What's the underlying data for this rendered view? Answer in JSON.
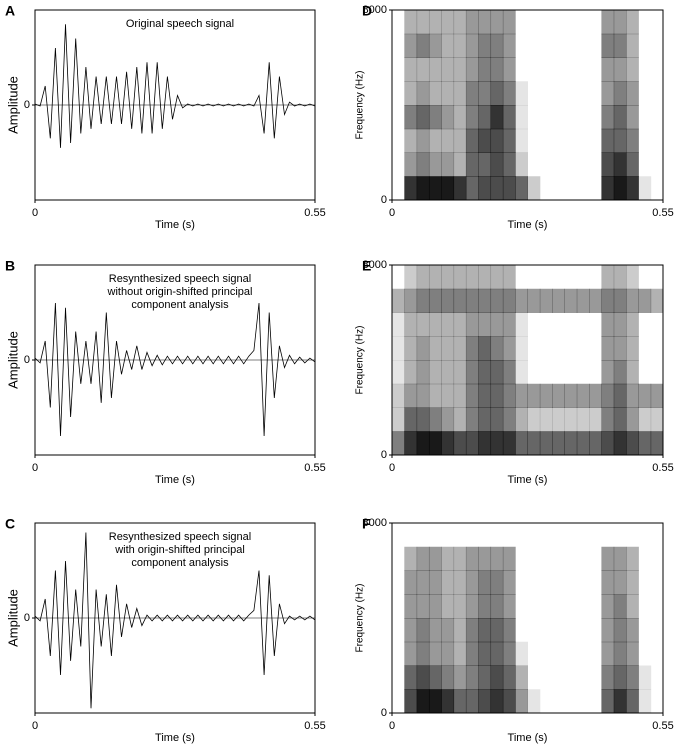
{
  "chart_data": [
    {
      "type": "line",
      "panel": "A",
      "title": [
        "Original speech signal"
      ],
      "xlabel": "Time (s)",
      "ylabel": "Amplitude",
      "xlim": [
        0,
        0.55
      ],
      "xticks": [
        0,
        0.55
      ],
      "ylim": [
        -1,
        1
      ],
      "yticks": [
        0
      ],
      "color": "#000000",
      "x": [
        0,
        0.01,
        0.02,
        0.03,
        0.04,
        0.05,
        0.06,
        0.07,
        0.08,
        0.09,
        0.1,
        0.11,
        0.12,
        0.13,
        0.14,
        0.15,
        0.16,
        0.17,
        0.18,
        0.19,
        0.2,
        0.21,
        0.22,
        0.23,
        0.24,
        0.25,
        0.26,
        0.27,
        0.28,
        0.29,
        0.3,
        0.31,
        0.32,
        0.33,
        0.34,
        0.35,
        0.36,
        0.37,
        0.38,
        0.39,
        0.4,
        0.41,
        0.42,
        0.43,
        0.44,
        0.45,
        0.46,
        0.47,
        0.48,
        0.49,
        0.5,
        0.51,
        0.52,
        0.53,
        0.54,
        0.55
      ],
      "values": [
        0.01,
        -0.01,
        0.2,
        -0.35,
        0.6,
        -0.45,
        0.85,
        -0.4,
        0.7,
        -0.3,
        0.4,
        -0.25,
        0.3,
        -0.2,
        0.3,
        -0.2,
        0.3,
        -0.2,
        0.35,
        -0.25,
        0.4,
        -0.3,
        0.45,
        -0.3,
        0.45,
        -0.25,
        0.3,
        -0.15,
        0.1,
        -0.03,
        0.01,
        -0.01,
        0.01,
        -0.01,
        0.01,
        -0.01,
        0.01,
        -0.01,
        0.01,
        -0.01,
        0.01,
        -0.01,
        0.01,
        -0.01,
        0.1,
        -0.3,
        0.45,
        -0.35,
        0.3,
        -0.1,
        0.03,
        -0.01,
        0.01,
        -0.01,
        0.01,
        -0.01
      ]
    },
    {
      "type": "heatmap",
      "panel": "D",
      "xlabel": "Time (s)",
      "ylabel": "Frequency (Hz)",
      "xlim": [
        0,
        0.55
      ],
      "xticks": [
        0,
        0.55
      ],
      "ylim": [
        0,
        8000
      ],
      "yticks": [
        0,
        8000
      ],
      "z": [
        [
          0,
          8,
          9,
          9,
          9,
          8,
          6,
          7,
          7,
          7,
          6,
          2,
          0,
          0,
          0,
          0,
          0,
          8,
          9,
          8,
          1,
          0
        ],
        [
          0,
          4,
          5,
          4,
          4,
          3,
          6,
          6,
          7,
          6,
          2,
          0,
          0,
          0,
          0,
          0,
          0,
          7,
          8,
          6,
          0,
          0
        ],
        [
          0,
          3,
          4,
          3,
          3,
          3,
          6,
          7,
          7,
          6,
          1,
          0,
          0,
          0,
          0,
          0,
          0,
          6,
          6,
          5,
          0,
          0
        ],
        [
          0,
          5,
          6,
          5,
          4,
          3,
          5,
          6,
          8,
          6,
          1,
          0,
          0,
          0,
          0,
          0,
          0,
          5,
          6,
          4,
          0,
          0
        ],
        [
          0,
          3,
          4,
          3,
          3,
          3,
          5,
          5,
          6,
          5,
          1,
          0,
          0,
          0,
          0,
          0,
          0,
          4,
          5,
          4,
          0,
          0
        ],
        [
          0,
          3,
          3,
          3,
          3,
          3,
          4,
          5,
          5,
          4,
          0,
          0,
          0,
          0,
          0,
          0,
          0,
          4,
          4,
          3,
          0,
          0
        ],
        [
          0,
          4,
          5,
          4,
          3,
          3,
          4,
          5,
          5,
          4,
          0,
          0,
          0,
          0,
          0,
          0,
          0,
          5,
          5,
          3,
          0,
          0
        ],
        [
          0,
          3,
          3,
          3,
          3,
          3,
          4,
          4,
          4,
          4,
          0,
          0,
          0,
          0,
          0,
          0,
          0,
          4,
          4,
          3,
          0,
          0
        ]
      ]
    },
    {
      "type": "line",
      "panel": "B",
      "title": [
        "Resynthesized speech signal",
        "without origin-shifted principal",
        "component analysis"
      ],
      "xlabel": "Time (s)",
      "ylabel": "Amplitude",
      "xlim": [
        0,
        0.55
      ],
      "xticks": [
        0,
        0.55
      ],
      "ylim": [
        -1,
        1
      ],
      "yticks": [
        0
      ],
      "color": "#000000",
      "x": [
        0,
        0.01,
        0.02,
        0.03,
        0.04,
        0.05,
        0.06,
        0.07,
        0.08,
        0.09,
        0.1,
        0.11,
        0.12,
        0.13,
        0.14,
        0.15,
        0.16,
        0.17,
        0.18,
        0.19,
        0.2,
        0.21,
        0.22,
        0.23,
        0.24,
        0.25,
        0.26,
        0.27,
        0.28,
        0.29,
        0.3,
        0.31,
        0.32,
        0.33,
        0.34,
        0.35,
        0.36,
        0.37,
        0.38,
        0.39,
        0.4,
        0.41,
        0.42,
        0.43,
        0.44,
        0.45,
        0.46,
        0.47,
        0.48,
        0.49,
        0.5,
        0.51,
        0.52,
        0.53,
        0.54,
        0.55
      ],
      "values": [
        0.02,
        -0.03,
        0.2,
        -0.5,
        0.6,
        -0.8,
        0.55,
        -0.6,
        0.3,
        -0.25,
        0.2,
        -0.25,
        0.3,
        -0.45,
        0.5,
        -0.4,
        0.2,
        -0.15,
        0.1,
        -0.1,
        0.15,
        -0.1,
        0.08,
        -0.06,
        0.05,
        -0.05,
        0.04,
        -0.04,
        0.04,
        -0.04,
        0.04,
        -0.04,
        0.04,
        -0.04,
        0.04,
        -0.04,
        0.04,
        -0.04,
        0.04,
        -0.04,
        0.04,
        -0.04,
        0.04,
        0.1,
        0.6,
        -0.8,
        0.5,
        -0.4,
        0.15,
        -0.08,
        0.05,
        -0.04,
        0.03,
        -0.03,
        0.02,
        -0.02
      ]
    },
    {
      "type": "heatmap",
      "panel": "E",
      "xlabel": "Time (s)",
      "ylabel": "Frequency (Hz)",
      "xlim": [
        0,
        0.55
      ],
      "xticks": [
        0,
        0.55
      ],
      "ylim": [
        0,
        8000
      ],
      "yticks": [
        0,
        8000
      ],
      "z": [
        [
          5,
          8,
          9,
          9,
          8,
          7,
          7,
          8,
          8,
          8,
          6,
          6,
          6,
          6,
          6,
          6,
          6,
          7,
          8,
          7,
          6,
          6
        ],
        [
          2,
          6,
          6,
          5,
          4,
          3,
          5,
          6,
          6,
          5,
          3,
          2,
          2,
          2,
          2,
          2,
          2,
          5,
          6,
          4,
          2,
          2
        ],
        [
          2,
          4,
          4,
          3,
          3,
          3,
          5,
          6,
          6,
          5,
          4,
          4,
          4,
          4,
          4,
          4,
          4,
          5,
          6,
          4,
          4,
          4
        ],
        [
          1,
          3,
          4,
          3,
          3,
          3,
          5,
          6,
          6,
          5,
          1,
          0,
          0,
          0,
          0,
          0,
          0,
          4,
          5,
          3,
          0,
          0
        ],
        [
          1,
          3,
          4,
          3,
          3,
          3,
          5,
          6,
          5,
          4,
          1,
          0,
          0,
          0,
          0,
          0,
          0,
          4,
          4,
          3,
          0,
          0
        ],
        [
          1,
          3,
          3,
          3,
          3,
          3,
          4,
          4,
          4,
          4,
          1,
          0,
          0,
          0,
          0,
          0,
          0,
          4,
          4,
          3,
          0,
          0
        ],
        [
          3,
          4,
          5,
          5,
          5,
          5,
          5,
          5,
          5,
          5,
          4,
          4,
          4,
          4,
          4,
          4,
          4,
          5,
          5,
          4,
          4,
          3
        ],
        [
          0,
          2,
          3,
          3,
          3,
          3,
          3,
          3,
          3,
          3,
          0,
          0,
          0,
          0,
          0,
          0,
          0,
          3,
          3,
          2,
          0,
          0
        ]
      ]
    },
    {
      "type": "line",
      "panel": "C",
      "title": [
        "Resynthesized speech signal",
        "with origin-shifted principal",
        "component analysis"
      ],
      "xlabel": "Time (s)",
      "ylabel": "Amplitude",
      "xlim": [
        0,
        0.55
      ],
      "xticks": [
        0,
        0.55
      ],
      "ylim": [
        -1,
        1
      ],
      "yticks": [
        0
      ],
      "color": "#000000",
      "x": [
        0,
        0.01,
        0.02,
        0.03,
        0.04,
        0.05,
        0.06,
        0.07,
        0.08,
        0.09,
        0.1,
        0.11,
        0.12,
        0.13,
        0.14,
        0.15,
        0.16,
        0.17,
        0.18,
        0.19,
        0.2,
        0.21,
        0.22,
        0.23,
        0.24,
        0.25,
        0.26,
        0.27,
        0.28,
        0.29,
        0.3,
        0.31,
        0.32,
        0.33,
        0.34,
        0.35,
        0.36,
        0.37,
        0.38,
        0.39,
        0.4,
        0.41,
        0.42,
        0.43,
        0.44,
        0.45,
        0.46,
        0.47,
        0.48,
        0.49,
        0.5,
        0.51,
        0.52,
        0.53,
        0.54,
        0.55
      ],
      "values": [
        0.02,
        -0.03,
        0.2,
        -0.4,
        0.5,
        -0.6,
        0.6,
        -0.45,
        0.3,
        -0.3,
        0.9,
        -0.95,
        0.3,
        -0.3,
        0.25,
        -0.4,
        0.35,
        -0.2,
        0.15,
        -0.1,
        0.1,
        -0.08,
        0.03,
        -0.03,
        0.03,
        -0.03,
        0.03,
        -0.03,
        0.03,
        -0.03,
        0.03,
        -0.03,
        0.03,
        -0.03,
        0.03,
        -0.03,
        0.03,
        -0.03,
        0.03,
        -0.03,
        0.03,
        -0.03,
        0.03,
        0.08,
        0.5,
        -0.6,
        0.45,
        -0.4,
        0.15,
        -0.06,
        0.02,
        -0.02,
        0.02,
        -0.02,
        0.02,
        -0.02
      ]
    },
    {
      "type": "heatmap",
      "panel": "F",
      "xlabel": "Time (s)",
      "ylabel": "Frequency (Hz)",
      "xlim": [
        0,
        0.55
      ],
      "xticks": [
        0,
        0.55
      ],
      "ylim": [
        0,
        8000
      ],
      "yticks": [
        0,
        8000
      ],
      "z": [
        [
          0,
          7,
          9,
          9,
          8,
          6,
          6,
          7,
          8,
          7,
          4,
          1,
          0,
          0,
          0,
          0,
          0,
          6,
          8,
          6,
          1,
          0
        ],
        [
          0,
          6,
          7,
          6,
          5,
          4,
          5,
          6,
          7,
          6,
          3,
          0,
          0,
          0,
          0,
          0,
          0,
          5,
          6,
          5,
          1,
          0
        ],
        [
          0,
          4,
          5,
          4,
          4,
          3,
          5,
          6,
          6,
          5,
          1,
          0,
          0,
          0,
          0,
          0,
          0,
          4,
          5,
          4,
          0,
          0
        ],
        [
          0,
          4,
          5,
          4,
          4,
          3,
          5,
          6,
          6,
          5,
          0,
          0,
          0,
          0,
          0,
          0,
          0,
          4,
          5,
          4,
          0,
          0
        ],
        [
          0,
          4,
          4,
          4,
          3,
          3,
          4,
          5,
          5,
          4,
          0,
          0,
          0,
          0,
          0,
          0,
          0,
          4,
          5,
          3,
          0,
          0
        ],
        [
          0,
          4,
          4,
          4,
          3,
          3,
          4,
          5,
          5,
          4,
          0,
          0,
          0,
          0,
          0,
          0,
          0,
          4,
          4,
          3,
          0,
          0
        ],
        [
          0,
          3,
          4,
          4,
          3,
          3,
          4,
          4,
          4,
          4,
          0,
          0,
          0,
          0,
          0,
          0,
          0,
          4,
          4,
          3,
          0,
          0
        ],
        [
          0,
          0,
          0,
          0,
          0,
          0,
          0,
          0,
          0,
          0,
          0,
          0,
          0,
          0,
          0,
          0,
          0,
          0,
          0,
          0,
          0,
          0
        ]
      ]
    }
  ]
}
